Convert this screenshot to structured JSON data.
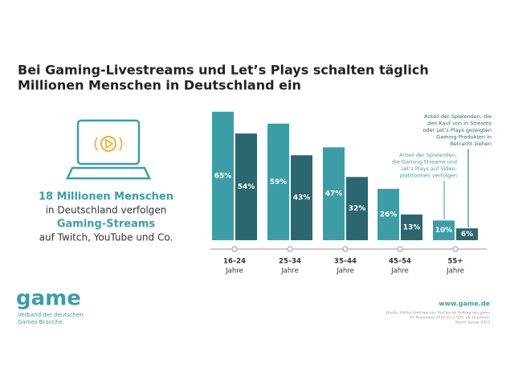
{
  "chart_data": {
    "type": "bar",
    "title": [
      "Bei Gaming-Livestreams und Let’s Plays schalten täglich",
      "Millionen Menschen in Deutschland ein"
    ],
    "highlight": [
      "18 Millionen Menschen",
      "in Deutschland verfolgen",
      "Gaming-Streams",
      "auf Twitch, YouTube und Co."
    ],
    "categories": [
      [
        "16–24",
        "Jahre"
      ],
      [
        "25–34",
        "Jahre"
      ],
      [
        "35–44",
        "Jahre"
      ],
      [
        "45–54",
        "Jahre"
      ],
      [
        "55+",
        "Jahre"
      ]
    ],
    "series": [
      {
        "name": [
          "Anteil der Spielenden,",
          "die Gaming-Streams und",
          "Let’s Plays auf Video-",
          "plattformen verfolgen"
        ],
        "color": "#3b9ea6",
        "values": [
          65,
          59,
          47,
          26,
          10
        ],
        "value_labels": [
          "65%",
          "59%",
          "47%",
          "26%",
          "10%"
        ]
      },
      {
        "name": [
          "Anteil der Spielenden, die",
          "den Kauf von in Streams",
          "oder Let’s Plays gezeigten",
          "Gaming-Produkten in",
          "Betracht ziehen"
        ],
        "color": "#2b6770",
        "values": [
          54,
          43,
          32,
          13,
          6
        ],
        "value_labels": [
          "54%",
          "43%",
          "32%",
          "13%",
          "6%"
        ]
      }
    ],
    "footer": {
      "logo": "game",
      "org": [
        "Verband der deutschen",
        "Games-Branche"
      ],
      "url": "www.game.de",
      "source": [
        "Quelle: Online-Umfrage von YouGov im Auftrag des game",
        "im November 2022 (n=2.035; ab 16 Jahren)",
        "Stand: Januar 2023"
      ]
    }
  }
}
